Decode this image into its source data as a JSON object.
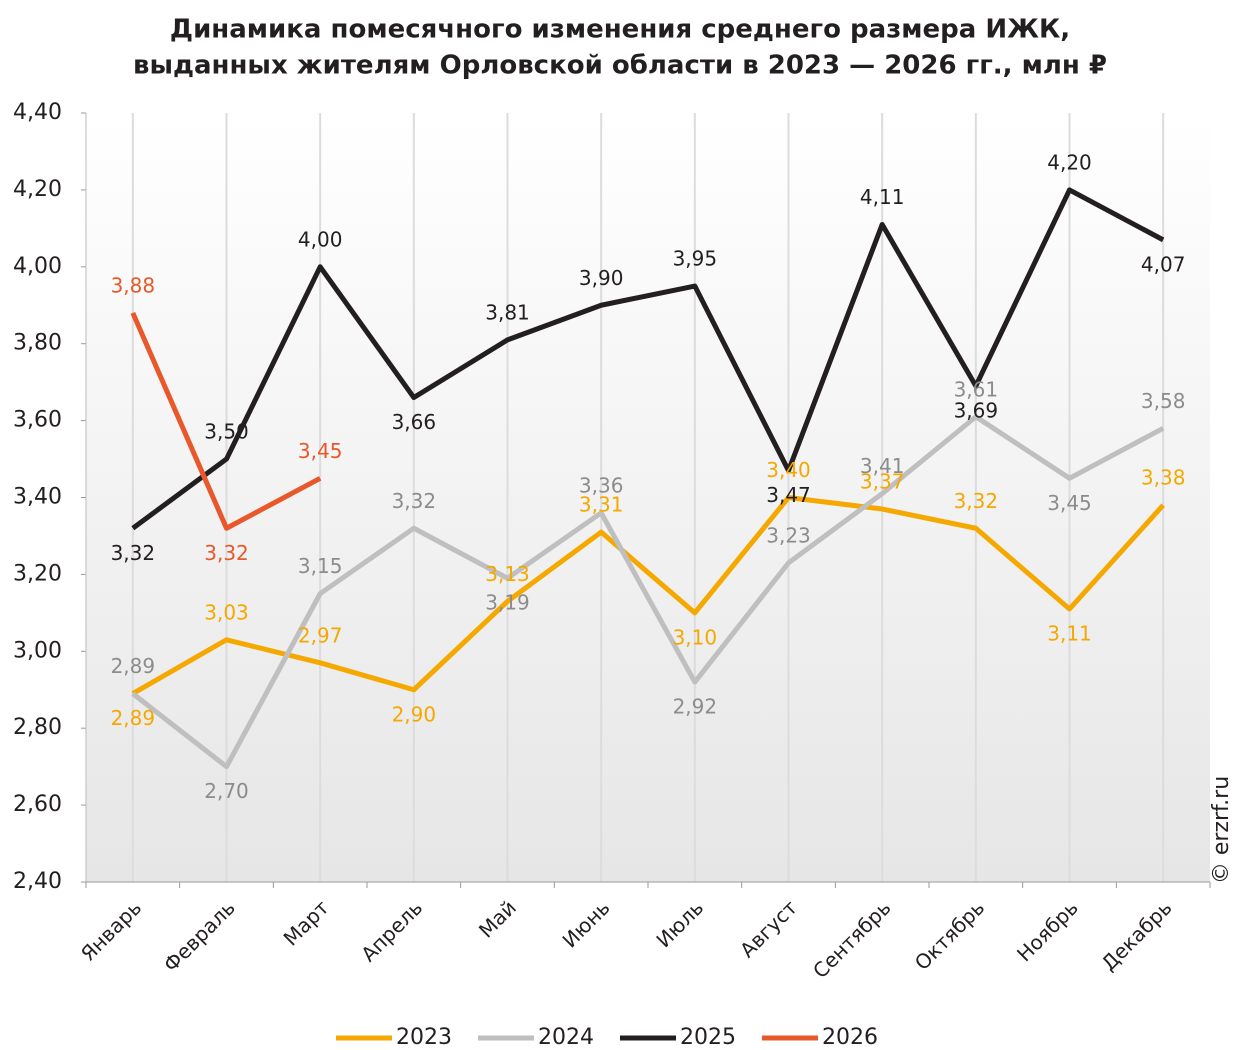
{
  "chart_data": {
    "type": "line",
    "title": [
      "Динамика помесячного изменения среднего размера ИЖК,",
      "выданных жителям Орловской области в 2023 — 2026 гг., млн ₽"
    ],
    "watermark": "© erzrf.ru",
    "categories": [
      "Январь",
      "Февраль",
      "Март",
      "Апрель",
      "Май",
      "Июнь",
      "Июль",
      "Август",
      "Сентябрь",
      "Октябрь",
      "Ноябрь",
      "Декабрь"
    ],
    "series": [
      {
        "name": "2023",
        "color": "#f5a800",
        "values": [
          2.89,
          3.03,
          2.97,
          2.9,
          3.13,
          3.31,
          3.1,
          3.4,
          3.37,
          3.32,
          3.11,
          3.38
        ],
        "value_labels": [
          "2,89",
          "3,03",
          "2,97",
          "2,90",
          "3,13",
          "3,31",
          "3,10",
          "3,40",
          "3,37",
          "3,32",
          "3,11",
          "3,38"
        ]
      },
      {
        "name": "2024",
        "color": "#bfbfbf",
        "values": [
          2.89,
          2.7,
          3.15,
          3.32,
          3.19,
          3.36,
          2.92,
          3.23,
          3.41,
          3.61,
          3.45,
          3.58
        ],
        "value_labels": [
          "2,89",
          "2,70",
          "3,15",
          "3,32",
          "3,19",
          "3,36",
          "2,92",
          "3,23",
          "3,41",
          "3,61",
          "3,45",
          "3,58"
        ]
      },
      {
        "name": "2025",
        "color": "#231f20",
        "values": [
          3.32,
          3.5,
          4.0,
          3.66,
          3.81,
          3.9,
          3.95,
          3.47,
          4.11,
          3.69,
          4.2,
          4.07
        ],
        "value_labels": [
          "3,32",
          "3,50",
          "4,00",
          "3,66",
          "3,81",
          "3,90",
          "3,95",
          "3,47",
          "4,11",
          "3,69",
          "4,20",
          "4,07"
        ]
      },
      {
        "name": "2026",
        "color": "#e8582a",
        "values": [
          3.88,
          3.32,
          3.45,
          null,
          null,
          null,
          null,
          null,
          null,
          null,
          null,
          null
        ],
        "value_labels": [
          "3,88",
          "3,32",
          "3,45",
          null,
          null,
          null,
          null,
          null,
          null,
          null,
          null,
          null
        ]
      }
    ],
    "ylim": [
      2.4,
      4.4
    ],
    "yticks": [
      {
        "value": 2.4,
        "label": "2,40"
      },
      {
        "value": 2.6,
        "label": "2,60"
      },
      {
        "value": 2.8,
        "label": "2,80"
      },
      {
        "value": 3.0,
        "label": "3,00"
      },
      {
        "value": 3.2,
        "label": "3,20"
      },
      {
        "value": 3.4,
        "label": "3,40"
      },
      {
        "value": 3.6,
        "label": "3,60"
      },
      {
        "value": 3.8,
        "label": "3,80"
      },
      {
        "value": 4.0,
        "label": "4,00"
      },
      {
        "value": 4.2,
        "label": "4,20"
      },
      {
        "value": 4.4,
        "label": "4,40"
      }
    ],
    "grid": true,
    "legend": "bottom"
  }
}
